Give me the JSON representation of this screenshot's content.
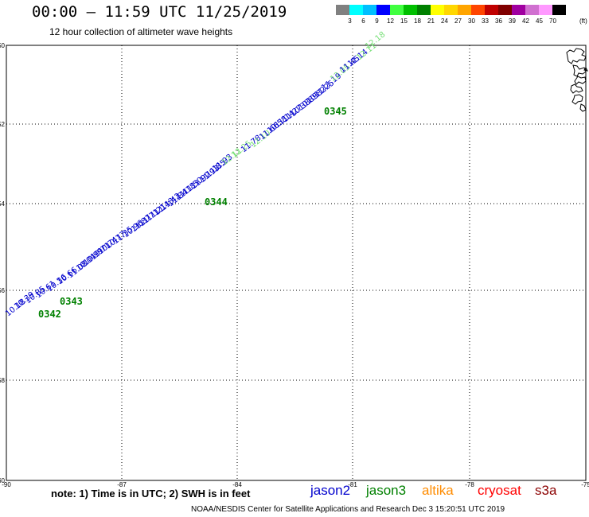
{
  "title": "00:00 – 11:59 UTC 11/25/2019",
  "subtitle": "12 hour collection of altimeter wave heights",
  "legend": {
    "colors": [
      "#808080",
      "#00ffff",
      "#00bfff",
      "#0000ff",
      "#40ff40",
      "#00c000",
      "#008000",
      "#ffff00",
      "#ffd700",
      "#ffa500",
      "#ff4500",
      "#c00000",
      "#800000",
      "#a000a0",
      "#d070d0",
      "#ff99ff",
      "#000000"
    ],
    "labels": [
      "3",
      "6",
      "9",
      "12",
      "15",
      "18",
      "21",
      "24",
      "27",
      "30",
      "33",
      "36",
      "39",
      "42",
      "45",
      "70"
    ],
    "unit": "(ft)"
  },
  "axes": {
    "lat_ticks": [
      "-50",
      "-52",
      "-54",
      "-56",
      "-58",
      "-60"
    ],
    "lon_ticks": [
      "-90",
      "-87",
      "-84",
      "-81",
      "-78",
      "-75"
    ]
  },
  "observations": [
    {
      "value": "10.18",
      "color": "#0000cd"
    },
    {
      "value": "10.39",
      "color": "#0000cd"
    },
    {
      "value": "10.85",
      "color": "#0000cd"
    },
    {
      "value": "10.61",
      "color": "#0000cd"
    },
    {
      "value": "10.36",
      "color": "#0000cd"
    },
    {
      "value": "10.66",
      "color": "#0000cd"
    },
    {
      "value": "11.08",
      "color": "#0000cd"
    },
    {
      "value": "10.04",
      "color": "#0000cd"
    },
    {
      "value": "10.99",
      "color": "#0000cd"
    },
    {
      "value": "10.71",
      "color": "#0000cd"
    },
    {
      "value": "10.74",
      "color": "#0000cd"
    },
    {
      "value": "10.77",
      "color": "#0000cd"
    },
    {
      "value": "11.35",
      "color": "#0000cd"
    },
    {
      "value": "10.96",
      "color": "#0000cd"
    },
    {
      "value": "11.87",
      "color": "#0000cd"
    },
    {
      "value": "11.71",
      "color": "#0000cd"
    },
    {
      "value": "11.21",
      "color": "#0000cd"
    },
    {
      "value": "11.43",
      "color": "#0000cd"
    },
    {
      "value": "11.42",
      "color": "#0000cd"
    },
    {
      "value": "11.84",
      "color": "#0000cd"
    },
    {
      "value": "11.18",
      "color": "#0000cd"
    },
    {
      "value": "11.50",
      "color": "#0000cd"
    },
    {
      "value": "11.92",
      "color": "#0000cd"
    },
    {
      "value": "11.93",
      "color": "#0000cd"
    },
    {
      "value": "11.85",
      "color": "#0000cd"
    },
    {
      "value": "11.93",
      "color": "#0000cd"
    },
    {
      "value": "12.11",
      "color": "#7ae07a"
    },
    {
      "value": "12.25",
      "color": "#7ae07a"
    },
    {
      "value": "11.78",
      "color": "#0000cd"
    },
    {
      "value": "12.10",
      "color": "#7ae07a"
    },
    {
      "value": "11.66",
      "color": "#0000cd"
    },
    {
      "value": "10.58",
      "color": "#0000cd"
    },
    {
      "value": "11.14",
      "color": "#0000cd"
    },
    {
      "value": "11.27",
      "color": "#0000cd"
    },
    {
      "value": "10.38",
      "color": "#0000cd"
    },
    {
      "value": "10.89",
      "color": "#0000cd"
    },
    {
      "value": "10.82",
      "color": "#0000cd"
    },
    {
      "value": "11.25",
      "color": "#0000cd"
    },
    {
      "value": "11.19",
      "color": "#0000cd"
    },
    {
      "value": "12.05",
      "color": "#7ae07a"
    },
    {
      "value": "11.45",
      "color": "#0000cd"
    },
    {
      "value": "11.14",
      "color": "#0000cd"
    },
    {
      "value": "12.11",
      "color": "#7ae07a"
    },
    {
      "value": "12.18",
      "color": "#7ae07a"
    }
  ],
  "pass_times": [
    "0342",
    "0343",
    "0344",
    "0345"
  ],
  "note": "note: 1) Time is in UTC; 2) SWH is in feet",
  "satellites": [
    {
      "name": "jason2",
      "color": "#0000cd"
    },
    {
      "name": "jason3",
      "color": "#008000"
    },
    {
      "name": "altika",
      "color": "#ff8c00"
    },
    {
      "name": "cryosat",
      "color": "#ff0000"
    },
    {
      "name": "s3a",
      "color": "#8b0000"
    }
  ],
  "credit": "NOAA/NESDIS Center for Satellite Applications and Research     Dec  3 15:20:51 UTC 2019"
}
